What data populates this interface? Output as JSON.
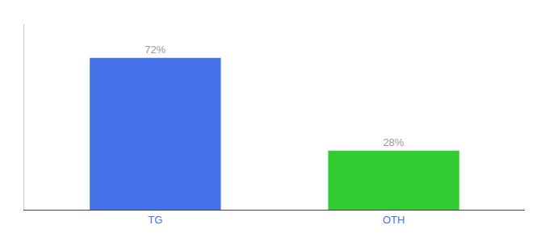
{
  "chart_data": {
    "type": "bar",
    "categories": [
      "TG",
      "OTH"
    ],
    "values": [
      72,
      28
    ],
    "value_labels": [
      "72%",
      "28%"
    ],
    "colors": [
      "#4472e8",
      "#33cc33"
    ],
    "ylim": [
      0,
      88
    ],
    "grid": false,
    "data_labels": true,
    "tick_labels": "x"
  }
}
